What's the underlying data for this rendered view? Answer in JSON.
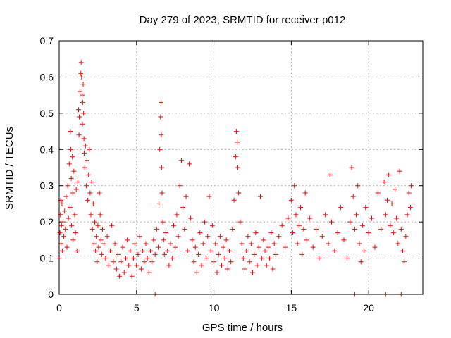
{
  "chart_data": {
    "type": "scatter",
    "title": "Day 279 of 2023, SRMTID for receiver p012",
    "xlabel": "GPS time / hours",
    "ylabel": "SRMTID / TECUs",
    "xlim": [
      0,
      23.5
    ],
    "ylim": [
      0,
      0.7
    ],
    "xticks": [
      0,
      5,
      10,
      15,
      20
    ],
    "yticks": [
      0,
      0.1,
      0.2,
      0.3,
      0.4,
      0.5,
      0.6,
      0.7
    ],
    "xtick_labels": [
      "0",
      "5",
      "10",
      "15",
      "20"
    ],
    "ytick_labels": [
      "0",
      "0.1",
      "0.2",
      "0.3",
      "0.4",
      "0.5",
      "0.6",
      "0.7"
    ],
    "grid": true,
    "marker": "+",
    "color": "#ff0000",
    "series": [
      {
        "name": "p012",
        "points": [
          [
            0.0,
            0.1
          ],
          [
            0.05,
            0.17
          ],
          [
            0.08,
            0.22
          ],
          [
            0.1,
            0.26
          ],
          [
            0.12,
            0.14
          ],
          [
            0.15,
            0.19
          ],
          [
            0.18,
            0.25
          ],
          [
            0.2,
            0.12
          ],
          [
            0.25,
            0.2
          ],
          [
            0.3,
            0.16
          ],
          [
            0.35,
            0.23
          ],
          [
            0.4,
            0.18
          ],
          [
            0.45,
            0.27
          ],
          [
            0.5,
            0.13
          ],
          [
            0.55,
            0.3
          ],
          [
            0.6,
            0.21
          ],
          [
            0.65,
            0.36
          ],
          [
            0.7,
            0.24
          ],
          [
            0.72,
            0.45
          ],
          [
            0.75,
            0.4
          ],
          [
            0.78,
            0.32
          ],
          [
            0.8,
            0.19
          ],
          [
            0.85,
            0.38
          ],
          [
            0.88,
            0.28
          ],
          [
            0.9,
            0.15
          ],
          [
            0.95,
            0.34
          ],
          [
            1.0,
            0.22
          ],
          [
            1.05,
            0.17
          ],
          [
            1.1,
            0.29
          ],
          [
            1.15,
            0.12
          ],
          [
            1.2,
            0.31
          ],
          [
            1.25,
            0.51
          ],
          [
            1.28,
            0.44
          ],
          [
            1.3,
            0.49
          ],
          [
            1.35,
            0.56
          ],
          [
            1.4,
            0.61
          ],
          [
            1.42,
            0.64
          ],
          [
            1.45,
            0.6
          ],
          [
            1.48,
            0.55
          ],
          [
            1.5,
            0.47
          ],
          [
            1.52,
            0.53
          ],
          [
            1.55,
            0.58
          ],
          [
            1.58,
            0.5
          ],
          [
            1.6,
            0.43
          ],
          [
            1.62,
            0.39
          ],
          [
            1.65,
            0.35
          ],
          [
            1.7,
            0.41
          ],
          [
            1.75,
            0.3
          ],
          [
            1.8,
            0.37
          ],
          [
            1.85,
            0.26
          ],
          [
            1.9,
            0.33
          ],
          [
            1.95,
            0.4
          ],
          [
            2.0,
            0.28
          ],
          [
            2.05,
            0.22
          ],
          [
            2.1,
            0.31
          ],
          [
            2.15,
            0.18
          ],
          [
            2.2,
            0.25
          ],
          [
            2.25,
            0.14
          ],
          [
            2.3,
            0.2
          ],
          [
            2.35,
            0.12
          ],
          [
            2.4,
            0.16
          ],
          [
            2.45,
            0.09
          ],
          [
            2.5,
            0.19
          ],
          [
            2.55,
            0.13
          ],
          [
            2.6,
            0.28
          ],
          [
            2.65,
            0.22
          ],
          [
            2.7,
            0.15
          ],
          [
            2.75,
            0.11
          ],
          [
            2.8,
            0.18
          ],
          [
            2.9,
            0.14
          ],
          [
            3.0,
            0.1
          ],
          [
            3.1,
            0.16
          ],
          [
            3.2,
            0.08
          ],
          [
            3.3,
            0.12
          ],
          [
            3.4,
            0.19
          ],
          [
            3.5,
            0.09
          ],
          [
            3.6,
            0.14
          ],
          [
            3.7,
            0.07
          ],
          [
            3.8,
            0.11
          ],
          [
            3.9,
            0.05
          ],
          [
            4.0,
            0.09
          ],
          [
            4.1,
            0.13
          ],
          [
            4.2,
            0.06
          ],
          [
            4.3,
            0.1
          ],
          [
            4.4,
            0.15
          ],
          [
            4.5,
            0.08
          ],
          [
            4.6,
            0.12
          ],
          [
            4.7,
            0.05
          ],
          [
            4.8,
            0.1
          ],
          [
            4.9,
            0.14
          ],
          [
            5.0,
            0.08
          ],
          [
            5.1,
            0.11
          ],
          [
            5.2,
            0.16
          ],
          [
            5.3,
            0.07
          ],
          [
            5.4,
            0.12
          ],
          [
            5.5,
            0.09
          ],
          [
            5.6,
            0.14
          ],
          [
            5.7,
            0.1
          ],
          [
            5.8,
            0.06
          ],
          [
            5.9,
            0.12
          ],
          [
            6.0,
            0.09
          ],
          [
            6.1,
            0.15
          ],
          [
            6.2,
            0.11
          ],
          [
            6.3,
            0.18
          ],
          [
            6.4,
            0.13
          ],
          [
            6.45,
            0.25
          ],
          [
            6.5,
            0.4
          ],
          [
            6.55,
            0.49
          ],
          [
            6.58,
            0.53
          ],
          [
            6.6,
            0.44
          ],
          [
            6.62,
            0.35
          ],
          [
            6.65,
            0.28
          ],
          [
            6.7,
            0.2
          ],
          [
            6.75,
            0.15
          ],
          [
            6.8,
            0.11
          ],
          [
            6.9,
            0.17
          ],
          [
            7.0,
            0.12
          ],
          [
            7.1,
            0.08
          ],
          [
            7.2,
            0.14
          ],
          [
            7.3,
            0.1
          ],
          [
            7.4,
            0.19
          ],
          [
            7.5,
            0.13
          ],
          [
            7.6,
            0.22
          ],
          [
            7.7,
            0.16
          ],
          [
            7.8,
            0.3
          ],
          [
            7.9,
            0.37
          ],
          [
            8.0,
            0.24
          ],
          [
            8.1,
            0.18
          ],
          [
            8.2,
            0.27
          ],
          [
            8.3,
            0.12
          ],
          [
            8.4,
            0.36
          ],
          [
            8.5,
            0.21
          ],
          [
            8.6,
            0.15
          ],
          [
            8.7,
            0.09
          ],
          [
            8.8,
            0.13
          ],
          [
            8.9,
            0.06
          ],
          [
            9.0,
            0.11
          ],
          [
            9.1,
            0.17
          ],
          [
            9.2,
            0.08
          ],
          [
            9.3,
            0.14
          ],
          [
            9.4,
            0.2
          ],
          [
            9.5,
            0.1
          ],
          [
            9.6,
            0.16
          ],
          [
            9.7,
            0.27
          ],
          [
            9.8,
            0.12
          ],
          [
            9.9,
            0.19
          ],
          [
            10.0,
            0.09
          ],
          [
            10.1,
            0.14
          ],
          [
            10.2,
            0.06
          ],
          [
            10.3,
            0.11
          ],
          [
            10.4,
            0.16
          ],
          [
            10.5,
            0.08
          ],
          [
            10.6,
            0.13
          ],
          [
            10.7,
            0.1
          ],
          [
            10.8,
            0.15
          ],
          [
            10.9,
            0.07
          ],
          [
            11.0,
            0.12
          ],
          [
            11.1,
            0.09
          ],
          [
            11.2,
            0.18
          ],
          [
            11.3,
            0.26
          ],
          [
            11.4,
            0.38
          ],
          [
            11.45,
            0.45
          ],
          [
            11.5,
            0.42
          ],
          [
            11.55,
            0.35
          ],
          [
            11.6,
            0.28
          ],
          [
            11.7,
            0.2
          ],
          [
            11.8,
            0.14
          ],
          [
            11.9,
            0.1
          ],
          [
            12.0,
            0.07
          ],
          [
            12.1,
            0.12
          ],
          [
            12.2,
            0.16
          ],
          [
            12.3,
            0.09
          ],
          [
            12.4,
            0.14
          ],
          [
            12.5,
            0.06
          ],
          [
            12.6,
            0.11
          ],
          [
            12.7,
            0.17
          ],
          [
            12.8,
            0.08
          ],
          [
            12.9,
            0.13
          ],
          [
            13.0,
            0.27
          ],
          [
            13.1,
            0.1
          ],
          [
            13.2,
            0.15
          ],
          [
            13.3,
            0.12
          ],
          [
            13.4,
            0.08
          ],
          [
            13.5,
            0.13
          ],
          [
            13.6,
            0.1
          ],
          [
            13.7,
            0.17
          ],
          [
            13.8,
            0.07
          ],
          [
            13.9,
            0.14
          ],
          [
            14.0,
            0.11
          ],
          [
            14.2,
            0.16
          ],
          [
            14.4,
            0.19
          ],
          [
            14.6,
            0.13
          ],
          [
            14.8,
            0.21
          ],
          [
            15.0,
            0.26
          ],
          [
            15.1,
            0.17
          ],
          [
            15.2,
            0.3
          ],
          [
            15.3,
            0.22
          ],
          [
            15.4,
            0.14
          ],
          [
            15.5,
            0.19
          ],
          [
            15.6,
            0.24
          ],
          [
            15.7,
            0.11
          ],
          [
            15.8,
            0.18
          ],
          [
            15.9,
            0.28
          ],
          [
            16.0,
            0.15
          ],
          [
            16.2,
            0.21
          ],
          [
            16.4,
            0.13
          ],
          [
            16.6,
            0.18
          ],
          [
            16.8,
            0.1
          ],
          [
            17.0,
            0.16
          ],
          [
            17.2,
            0.22
          ],
          [
            17.4,
            0.14
          ],
          [
            17.5,
            0.33
          ],
          [
            17.6,
            0.2
          ],
          [
            17.8,
            0.12
          ],
          [
            18.0,
            0.17
          ],
          [
            18.2,
            0.24
          ],
          [
            18.4,
            0.15
          ],
          [
            18.6,
            0.1
          ],
          [
            18.8,
            0.2
          ],
          [
            18.9,
            0.35
          ],
          [
            19.0,
            0.27
          ],
          [
            19.1,
            0.18
          ],
          [
            19.2,
            0.22
          ],
          [
            19.3,
            0.3
          ],
          [
            19.4,
            0.14
          ],
          [
            19.5,
            0.09
          ],
          [
            19.6,
            0.19
          ],
          [
            19.7,
            0.12
          ],
          [
            19.8,
            0.24
          ],
          [
            20.0,
            0.17
          ],
          [
            20.2,
            0.21
          ],
          [
            20.4,
            0.13
          ],
          [
            20.6,
            0.28
          ],
          [
            20.8,
            0.18
          ],
          [
            21.0,
            0.31
          ],
          [
            21.1,
            0.22
          ],
          [
            21.2,
            0.26
          ],
          [
            21.3,
            0.33
          ],
          [
            21.4,
            0.19
          ],
          [
            21.5,
            0.25
          ],
          [
            21.6,
            0.17
          ],
          [
            21.7,
            0.29
          ],
          [
            21.8,
            0.21
          ],
          [
            21.9,
            0.14
          ],
          [
            22.0,
            0.34
          ],
          [
            22.1,
            0.18
          ],
          [
            22.2,
            0.12
          ],
          [
            22.3,
            0.09
          ],
          [
            22.4,
            0.16
          ],
          [
            22.5,
            0.22
          ],
          [
            22.6,
            0.28
          ],
          [
            22.7,
            0.24
          ],
          [
            22.75,
            0.3
          ],
          [
            6.2,
            0.0
          ],
          [
            19.1,
            0.0
          ],
          [
            21.1,
            0.0
          ],
          [
            22.1,
            0.0
          ]
        ]
      }
    ]
  }
}
